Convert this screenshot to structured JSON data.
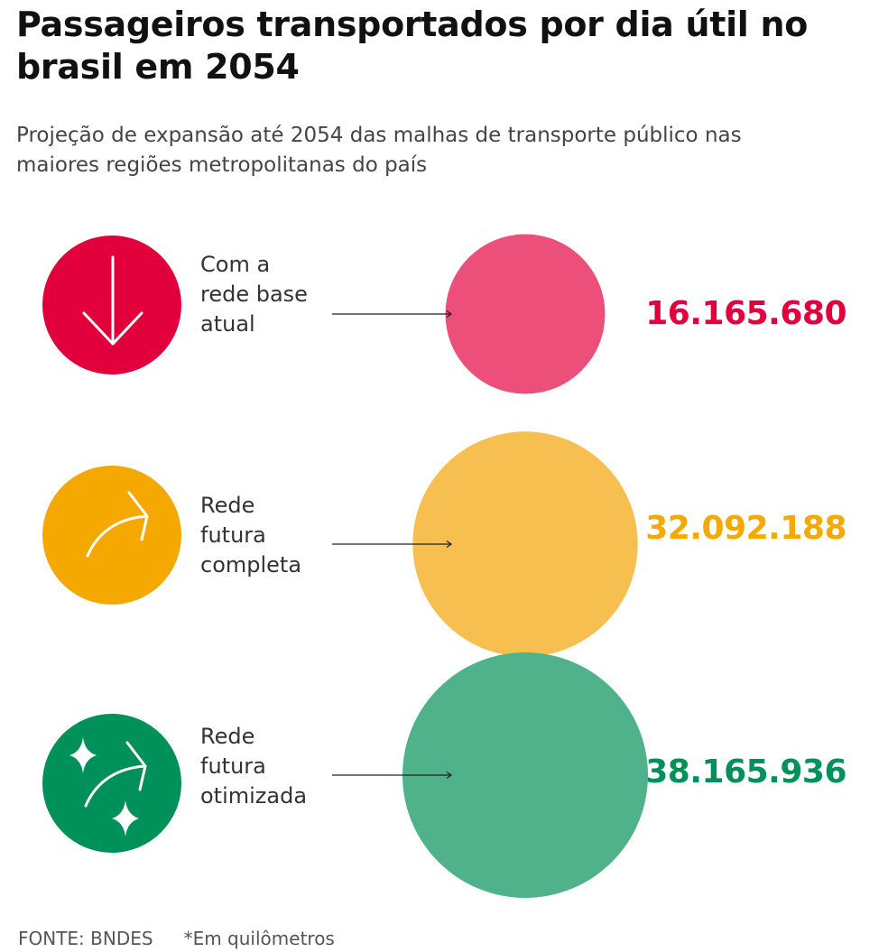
{
  "title": "Passageiros transportados por dia útil no brasil em 2054",
  "subtitle": "Projeção de expansão até 2054 das malhas de transporte público nas maiores regiões metropolitanas do país",
  "footer": {
    "source": "FONTE: BNDES",
    "note": "*Em quilômetros"
  },
  "colors": {
    "base_accent": "#e2003c",
    "base_bubble": "#ec4f79",
    "completa_accent": "#f5a800",
    "completa_bubble": "#f6bf4f",
    "otimizada_accent": "#00905a",
    "otimizada_bubble": "#4fb28a"
  },
  "icons": [
    "arrow-down-icon",
    "arrow-curve-up-icon",
    "sparkle-arrow-icon"
  ],
  "rows": [
    {
      "label_lines": [
        "Com a",
        "rede base",
        "atual"
      ],
      "value_text": "16.165.680"
    },
    {
      "label_lines": [
        "Rede",
        "futura",
        "completa"
      ],
      "value_text": "32.092.188"
    },
    {
      "label_lines": [
        "Rede",
        "futura",
        "otimizada"
      ],
      "value_text": "38.165.936"
    }
  ],
  "chart_data": {
    "type": "bubble",
    "title": "Passageiros transportados por dia útil no brasil em 2054",
    "categories": [
      "Com a rede base atual",
      "Rede futura completa",
      "Rede futura otimizada"
    ],
    "values": [
      16165680,
      32092188,
      38165936
    ],
    "colors": [
      "#ec4f79",
      "#f6bf4f",
      "#4fb28a"
    ],
    "size_encoding": "area"
  }
}
